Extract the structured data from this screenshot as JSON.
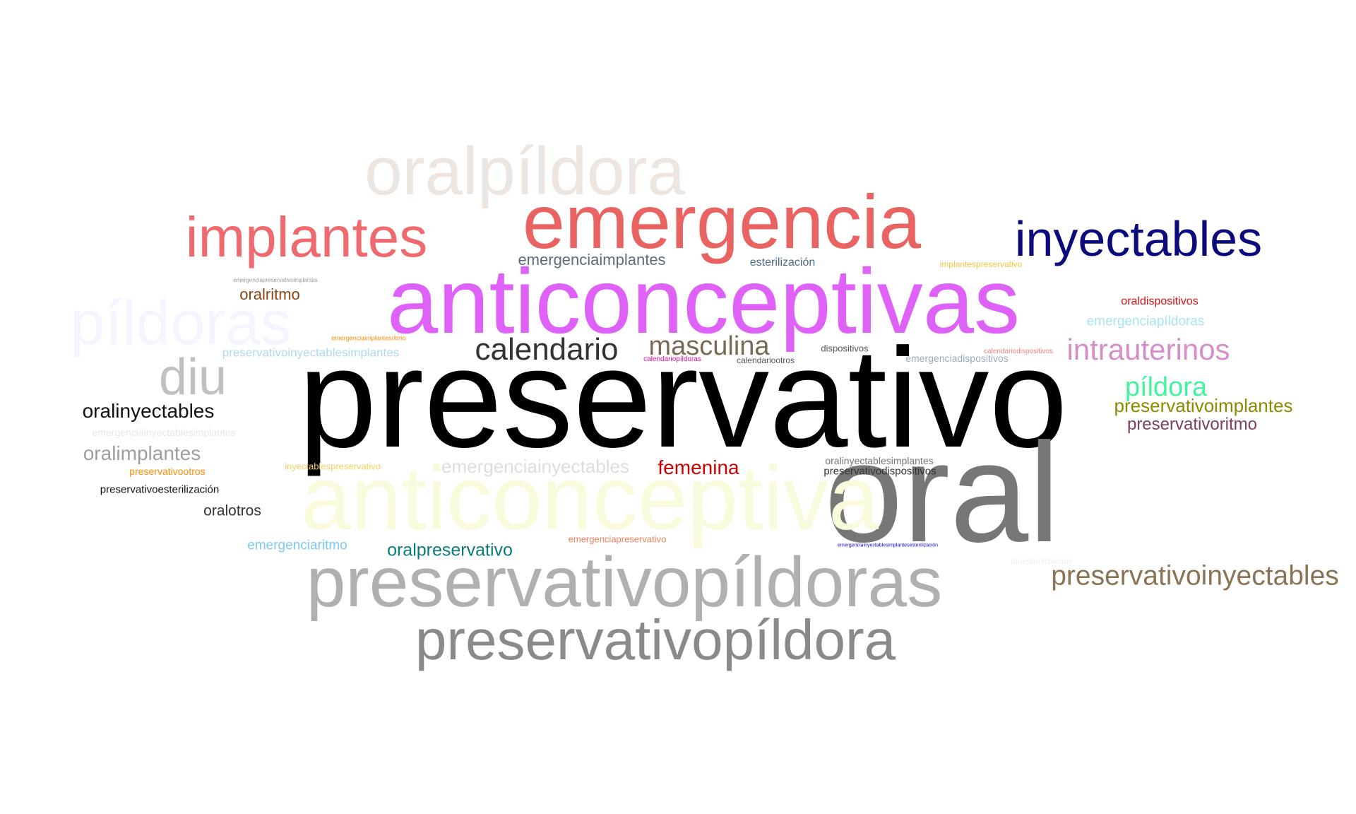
{
  "words": [
    {
      "text": "oralpíldora",
      "color": "#ede5df"
    },
    {
      "text": "emergencia",
      "color": "#ea6363"
    },
    {
      "text": "implantes",
      "color": "#ef6a6f"
    },
    {
      "text": "inyectables",
      "color": "#0b0b7e"
    },
    {
      "text": "píldoras",
      "color": "#f5f5ff"
    },
    {
      "text": "anticonceptivas",
      "color": "#df62f8"
    },
    {
      "text": "emergenciaimplantes",
      "color": "#5f6b7a"
    },
    {
      "text": "esterilización",
      "color": "#4a6a8a"
    },
    {
      "text": "implantespreservativo",
      "color": "#f1c640"
    },
    {
      "text": "emergenciapreservativoimplantes",
      "color": "#9a9a9a"
    },
    {
      "text": "oralritmo",
      "color": "#8b4513"
    },
    {
      "text": "oraldispositivos",
      "color": "#dd1010"
    },
    {
      "text": "emergenciapíldoras",
      "color": "#a8e4f0"
    },
    {
      "text": "emergenciaimplantesritmo",
      "color": "#ff8c00"
    },
    {
      "text": "calendario",
      "color": "#333333"
    },
    {
      "text": "masculina",
      "color": "#7a6a55"
    },
    {
      "text": "calendariopíldoras",
      "color": "#e0109a"
    },
    {
      "text": "calendariootros",
      "color": "#555555"
    },
    {
      "text": "dispositivos",
      "color": "#555555"
    },
    {
      "text": "emergenciadispositivos",
      "color": "#9aaabb"
    },
    {
      "text": "calendariodispositivos",
      "color": "#f08080"
    },
    {
      "text": "intrauterinos",
      "color": "#d58fc8"
    },
    {
      "text": "preservativoinyectablesimplantes",
      "color": "#b0d8f0"
    },
    {
      "text": "diu",
      "color": "#c0c0c0"
    },
    {
      "text": "preservativo",
      "color": "#000000"
    },
    {
      "text": "píldora",
      "color": "#44f2a0"
    },
    {
      "text": "preservativoimplantes",
      "color": "#8b8b00"
    },
    {
      "text": "oralinyectables",
      "color": "#111111"
    },
    {
      "text": "preservativoritmo",
      "color": "#7b3f5f"
    },
    {
      "text": "emergenciainyectablesimplantes",
      "color": "#e6e6e6"
    },
    {
      "text": "oralimplantes",
      "color": "#9e9e9e"
    },
    {
      "text": "oral",
      "color": "#777777"
    },
    {
      "text": "preservativootros",
      "color": "#ff8c00"
    },
    {
      "text": "inyectablespreservativo",
      "color": "#f5d060"
    },
    {
      "text": "emergenciainyectables",
      "color": "#dddddd"
    },
    {
      "text": "femenina",
      "color": "#cc0000"
    },
    {
      "text": "oralinyectablesimplantes",
      "color": "#777777"
    },
    {
      "text": "preservativodispositivos",
      "color": "#333333"
    },
    {
      "text": "anticonceptiva",
      "color": "#fafadc"
    },
    {
      "text": "preservativoesterilización",
      "color": "#111111"
    },
    {
      "text": "oralotros",
      "color": "#333333"
    },
    {
      "text": "emergenciaritmo",
      "color": "#7ec8f0"
    },
    {
      "text": "oralpreservativo",
      "color": "#0d7a7a"
    },
    {
      "text": "emergenciapreservativo",
      "color": "#f08060"
    },
    {
      "text": "emergenciainyectablesimplantesesterilización",
      "color": "#1010cc"
    },
    {
      "text": "diuesterilización",
      "color": "#eeeeee"
    },
    {
      "text": "preservativopíldoras",
      "color": "#b0b0b0"
    },
    {
      "text": "preservativoinyectables",
      "color": "#8b7355"
    },
    {
      "text": "preservativopíldora",
      "color": "#8a8a8a"
    }
  ]
}
